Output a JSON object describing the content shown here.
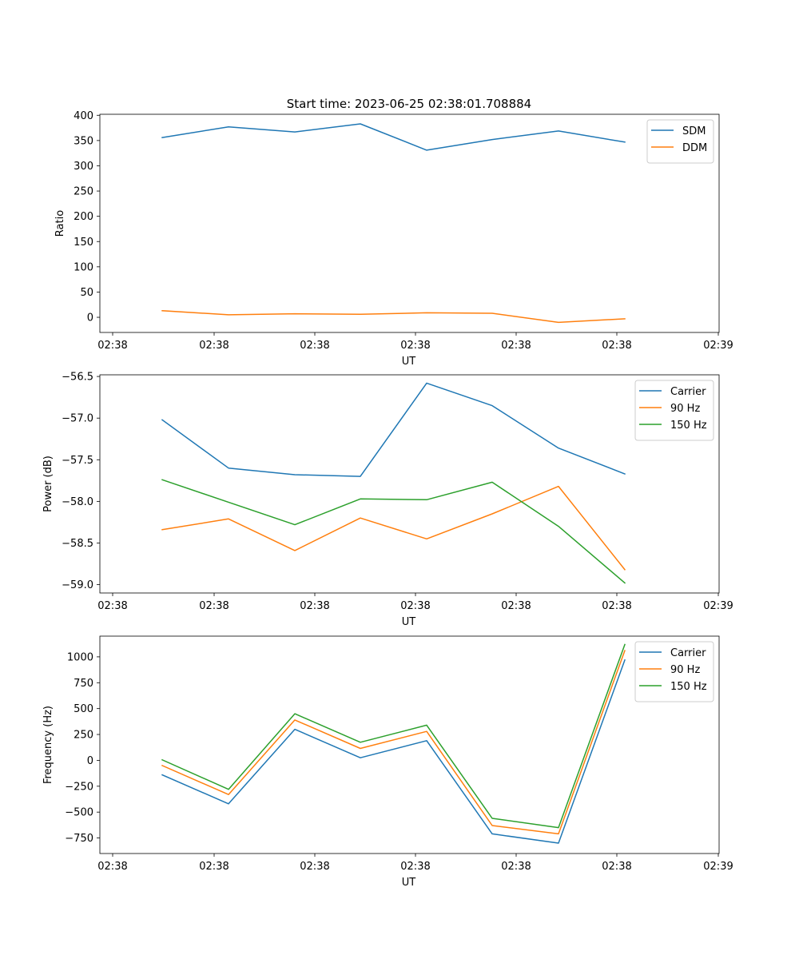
{
  "figure": {
    "title": "Start time: 2023-06-25 02:38:01.708884"
  },
  "colors": {
    "blue": "#1f77b4",
    "orange": "#ff7f0e",
    "green": "#2ca02c",
    "axis": "#000000",
    "legend_border": "#cccccc"
  },
  "chart_data": [
    {
      "type": "line",
      "title": "Start time: 2023-06-25 02:38:01.708884",
      "xlabel": "UT",
      "ylabel": "Ratio",
      "x_ticks": [
        "02:38",
        "02:38",
        "02:38",
        "02:38",
        "02:38",
        "02:38",
        "02:39"
      ],
      "y_ticks": [
        "0",
        "50",
        "100",
        "150",
        "200",
        "250",
        "300",
        "350",
        "400"
      ],
      "ylim": [
        -30,
        402
      ],
      "grid": false,
      "legend": "top-right",
      "series": [
        {
          "name": "SDM",
          "color": "#1f77b4",
          "values": [
            356,
            377,
            367,
            383,
            331,
            352,
            369,
            347
          ]
        },
        {
          "name": "DDM",
          "color": "#ff7f0e",
          "values": [
            13,
            5,
            7,
            6,
            9,
            8,
            -10,
            -3
          ]
        }
      ]
    },
    {
      "type": "line",
      "xlabel": "UT",
      "ylabel": "Power (dB)",
      "x_ticks": [
        "02:38",
        "02:38",
        "02:38",
        "02:38",
        "02:38",
        "02:38",
        "02:39"
      ],
      "y_ticks": [
        "−59.0",
        "−58.5",
        "−58.0",
        "−57.5",
        "−57.0",
        "−56.5"
      ],
      "ylim": [
        -59.1,
        -56.48
      ],
      "grid": false,
      "legend": "top-right",
      "series": [
        {
          "name": "Carrier",
          "color": "#1f77b4",
          "values": [
            -57.02,
            -57.6,
            -57.68,
            -57.7,
            -56.58,
            -56.85,
            -57.36,
            -57.67
          ]
        },
        {
          "name": "90 Hz",
          "color": "#ff7f0e",
          "values": [
            -58.34,
            -58.21,
            -58.59,
            -58.2,
            -58.45,
            -58.15,
            -57.82,
            -58.82
          ]
        },
        {
          "name": "150 Hz",
          "color": "#2ca02c",
          "values": [
            -57.74,
            -58.01,
            -58.28,
            -57.97,
            -57.98,
            -57.77,
            -58.3,
            -58.98
          ]
        }
      ]
    },
    {
      "type": "line",
      "xlabel": "UT",
      "ylabel": "Frequency (Hz)",
      "x_ticks": [
        "02:38",
        "02:38",
        "02:38",
        "02:38",
        "02:38",
        "02:38",
        "02:39"
      ],
      "y_ticks": [
        "−750",
        "−500",
        "−250",
        "0",
        "250",
        "500",
        "750",
        "1000"
      ],
      "ylim": [
        -900,
        1200
      ],
      "grid": false,
      "legend": "top-right",
      "series": [
        {
          "name": "Carrier",
          "color": "#1f77b4",
          "values": [
            -140,
            -420,
            300,
            25,
            190,
            -710,
            -800,
            970
          ]
        },
        {
          "name": "90 Hz",
          "color": "#ff7f0e",
          "values": [
            -50,
            -330,
            390,
            115,
            280,
            -630,
            -710,
            1060
          ]
        },
        {
          "name": "150 Hz",
          "color": "#2ca02c",
          "values": [
            5,
            -280,
            450,
            175,
            340,
            -560,
            -650,
            1120
          ]
        }
      ]
    }
  ]
}
